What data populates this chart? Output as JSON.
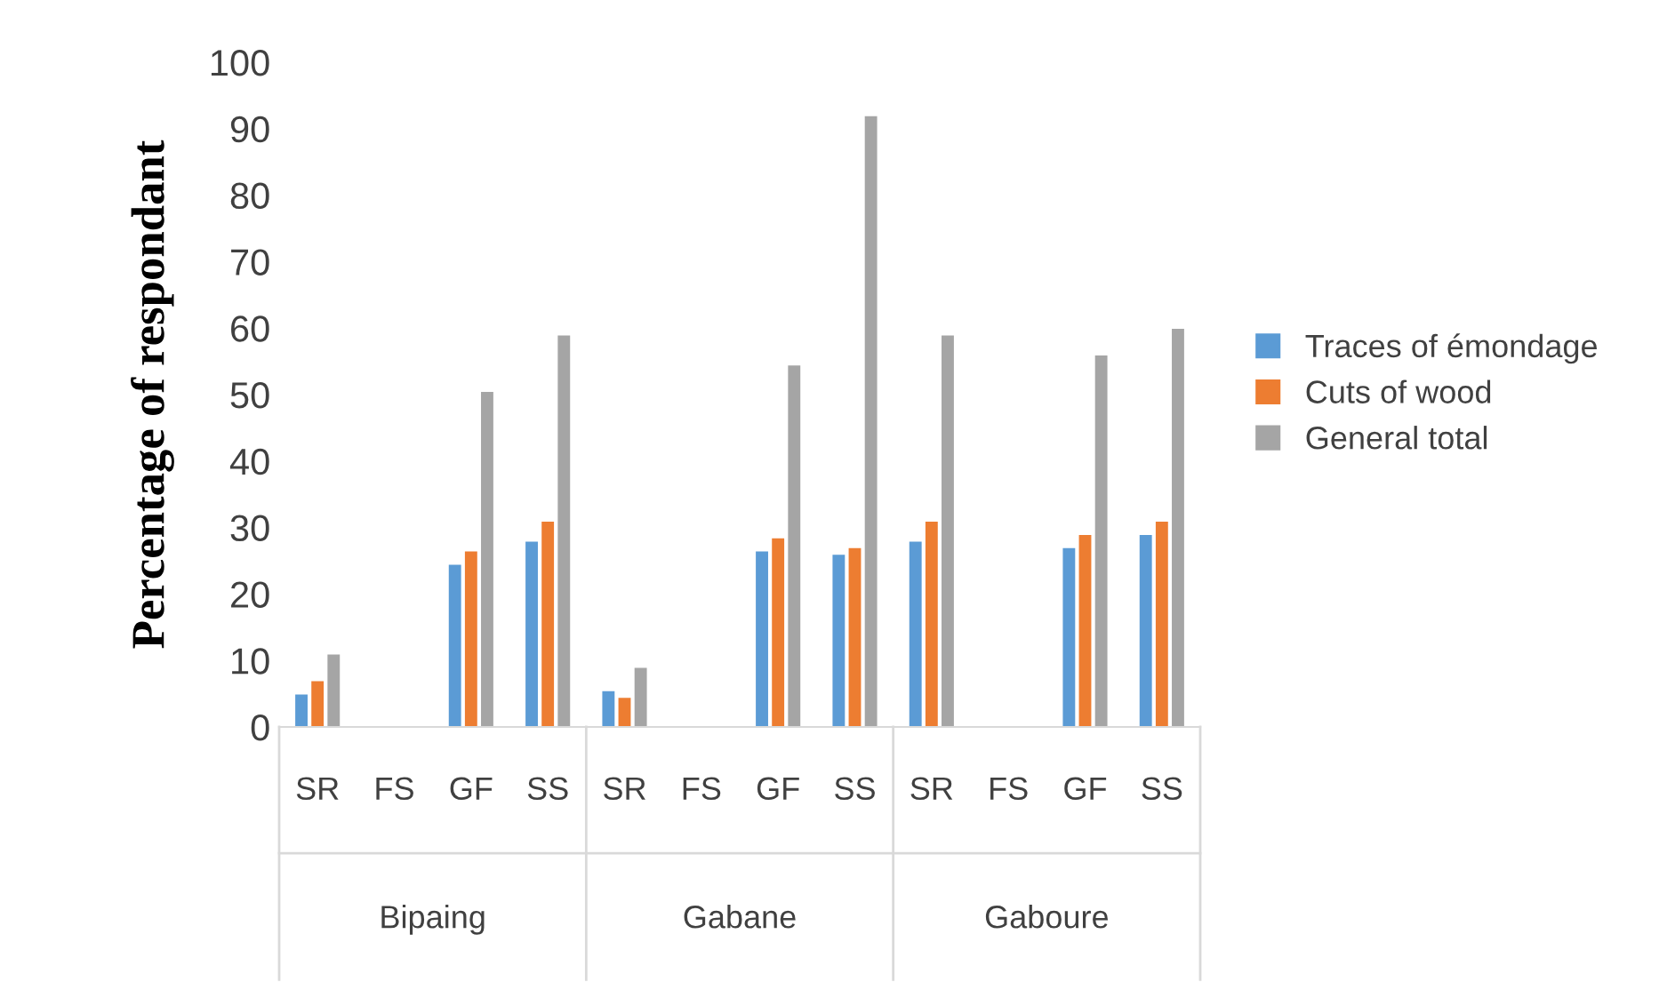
{
  "chart_data": {
    "type": "bar",
    "ylabel": "Percentage of respondant",
    "categories": [
      "SR",
      "FS",
      "GF",
      "SS",
      "SR",
      "FS",
      "GF",
      "SS",
      "SR",
      "FS",
      "GF",
      "SS"
    ],
    "series": [
      {
        "name": "Traces of émondage",
        "color": "#5b9bd5",
        "values": [
          5,
          null,
          24.5,
          28,
          5.5,
          null,
          26.5,
          26,
          28,
          null,
          27,
          29
        ]
      },
      {
        "name": "Cuts of wood",
        "color": "#ed7d31",
        "values": [
          7,
          null,
          26.5,
          31,
          4.5,
          null,
          28.5,
          27,
          31,
          null,
          29,
          31
        ]
      },
      {
        "name": "General total",
        "color": "#a5a5a5",
        "values": [
          11,
          null,
          50.5,
          59,
          9,
          null,
          54.5,
          92,
          59,
          null,
          56,
          60
        ]
      }
    ],
    "annotations": [
      "Bipaing",
      "Gabane",
      "Gaboure"
    ],
    "ylim": [
      0,
      100
    ],
    "yticks": [
      0,
      10,
      20,
      30,
      40,
      50,
      60,
      70,
      80,
      90,
      100
    ],
    "grid": false,
    "legend": "right"
  }
}
